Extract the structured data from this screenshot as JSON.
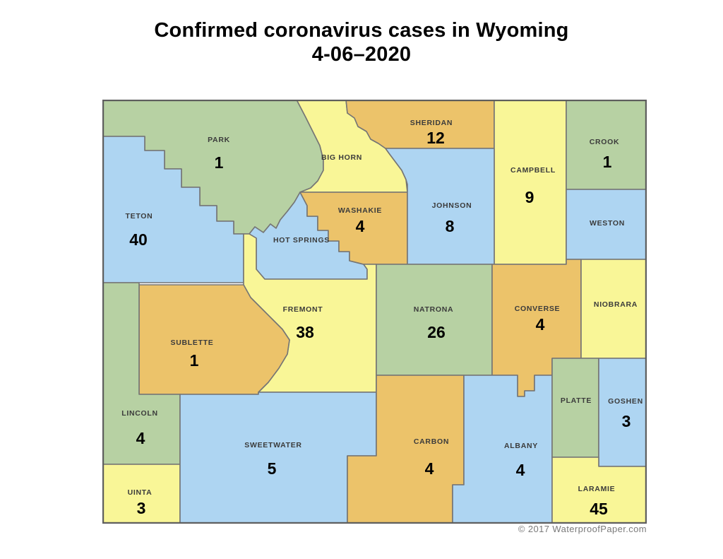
{
  "title": {
    "line1": "Confirmed coronavirus cases in Wyoming",
    "line2": "4-06–2020"
  },
  "copyright": "© 2017 WaterproofPaper.com",
  "colors": {
    "green": "#b7d1a3",
    "blue": "#aed5f2",
    "yellow": "#f9f697",
    "orange": "#ecc36a",
    "border": "#757575",
    "outline": "#5e5e5e",
    "label_text": "#3b3b3b",
    "cases_text": "#000000"
  },
  "counties": [
    {
      "id": "park",
      "name": "PARK",
      "cases": "1",
      "color": "green"
    },
    {
      "id": "bighorn",
      "name": "BIG HORN",
      "cases": null,
      "color": "yellow"
    },
    {
      "id": "sheridan",
      "name": "SHERIDAN",
      "cases": "12",
      "color": "orange"
    },
    {
      "id": "campbell",
      "name": "CAMPBELL",
      "cases": "9",
      "color": "yellow"
    },
    {
      "id": "crook",
      "name": "CROOK",
      "cases": "1",
      "color": "green"
    },
    {
      "id": "weston",
      "name": "WESTON",
      "cases": null,
      "color": "blue"
    },
    {
      "id": "teton",
      "name": "TETON",
      "cases": "40",
      "color": "blue"
    },
    {
      "id": "hotsprings",
      "name": "HOT SPRINGS",
      "cases": null,
      "color": "blue"
    },
    {
      "id": "washakie",
      "name": "WASHAKIE",
      "cases": "4",
      "color": "orange"
    },
    {
      "id": "johnson",
      "name": "JOHNSON",
      "cases": "8",
      "color": "blue"
    },
    {
      "id": "fremont",
      "name": "FREMONT",
      "cases": "38",
      "color": "yellow"
    },
    {
      "id": "natrona",
      "name": "NATRONA",
      "cases": "26",
      "color": "green"
    },
    {
      "id": "converse",
      "name": "CONVERSE",
      "cases": "4",
      "color": "orange"
    },
    {
      "id": "niobrara",
      "name": "NIOBRARA",
      "cases": null,
      "color": "yellow"
    },
    {
      "id": "sublette",
      "name": "SUBLETTE",
      "cases": "1",
      "color": "orange"
    },
    {
      "id": "lincoln",
      "name": "LINCOLN",
      "cases": "4",
      "color": "green"
    },
    {
      "id": "uinta",
      "name": "UINTA",
      "cases": "3",
      "color": "yellow"
    },
    {
      "id": "sweetwater",
      "name": "SWEETWATER",
      "cases": "5",
      "color": "blue"
    },
    {
      "id": "carbon",
      "name": "CARBON",
      "cases": "4",
      "color": "orange"
    },
    {
      "id": "albany",
      "name": "ALBANY",
      "cases": "4",
      "color": "blue"
    },
    {
      "id": "platte",
      "name": "PLATTE",
      "cases": null,
      "color": "green"
    },
    {
      "id": "goshen",
      "name": "GOSHEN",
      "cases": "3",
      "color": "blue"
    },
    {
      "id": "laramie",
      "name": "LARAMIE",
      "cases": "45",
      "color": "yellow"
    }
  ]
}
